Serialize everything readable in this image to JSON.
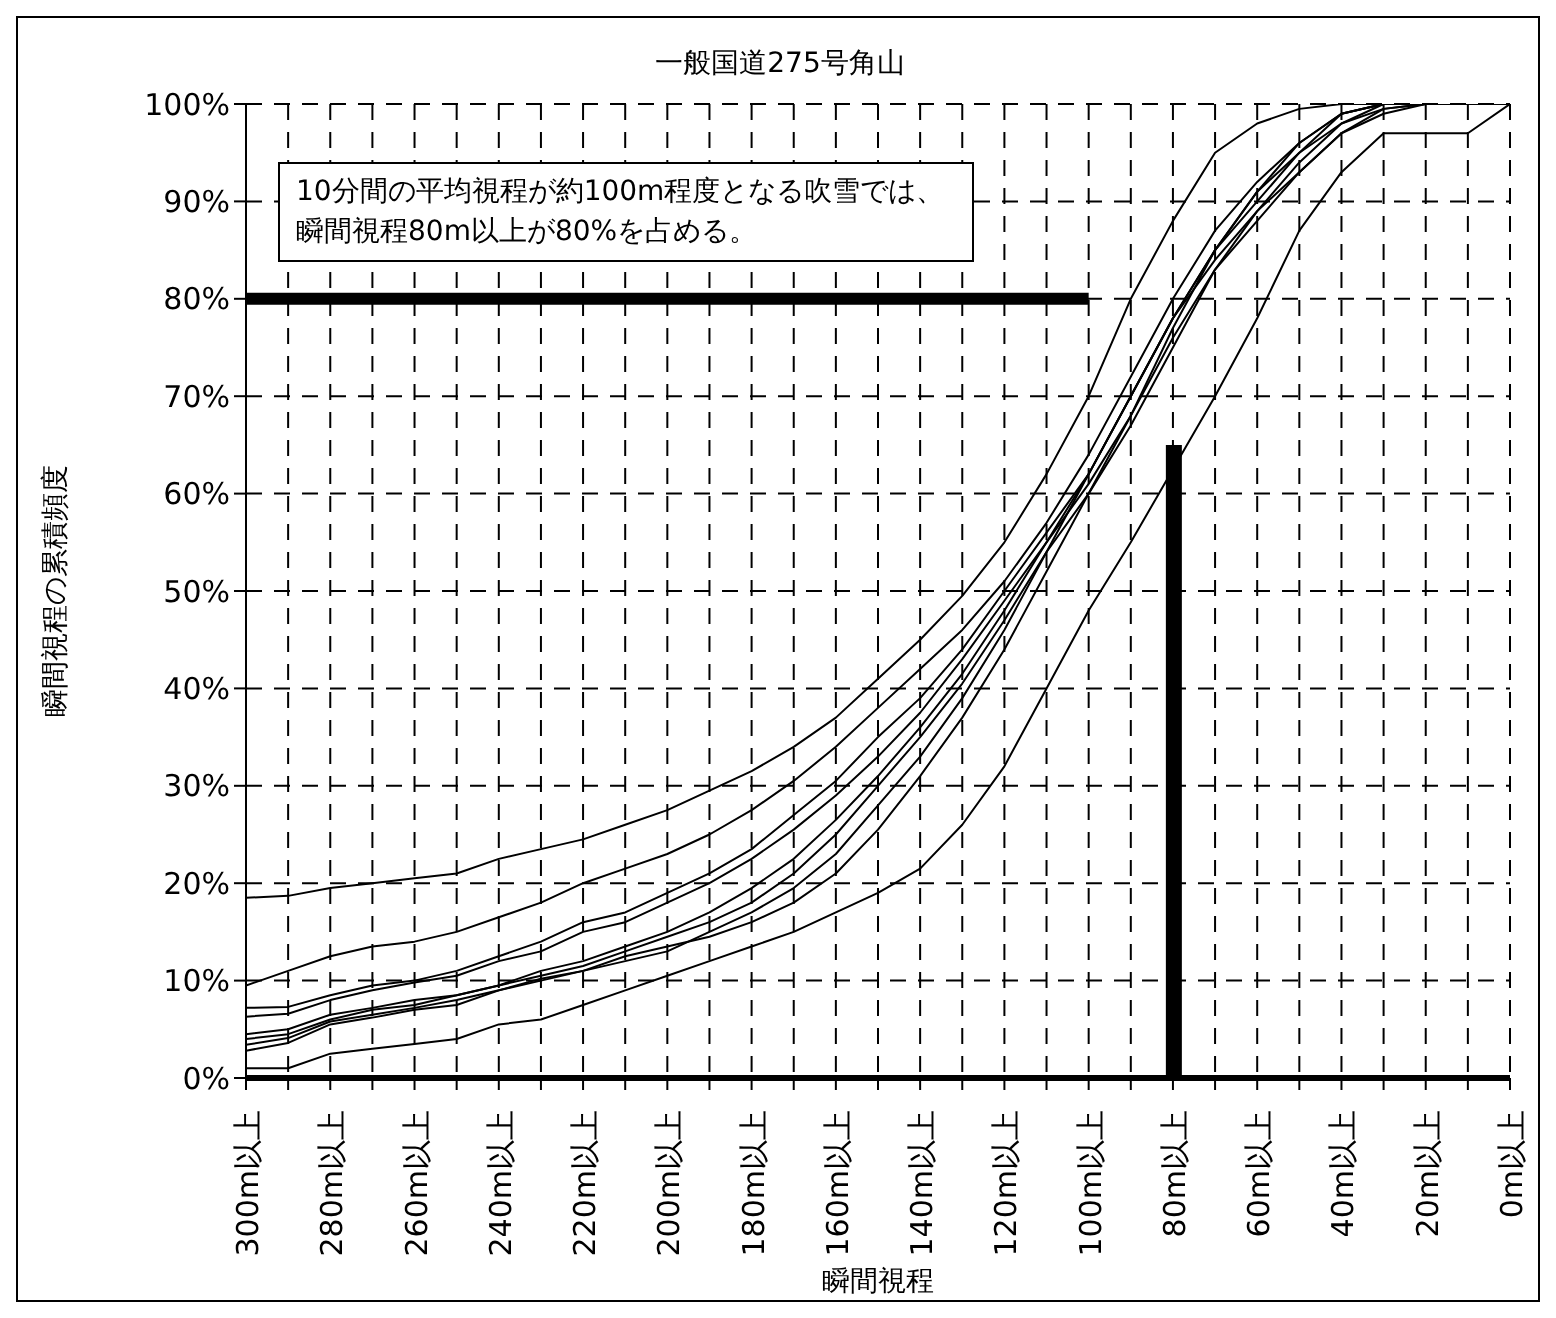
{
  "chart_data": {
    "type": "line",
    "title": "一般国道275号角山",
    "xlabel": "瞬間視程",
    "ylabel": "瞬間視程の累積頻度",
    "annotations": [
      "10分間の平均視程が約100m程度となる吹雪では、瞬間視程80m以上が80%を占める。"
    ],
    "categories": [
      "300m以上",
      null,
      "280m以上",
      null,
      "260m以上",
      null,
      "240m以上",
      null,
      "220m以上",
      null,
      "200m以上",
      null,
      "180m以上",
      null,
      "160m以上",
      null,
      "140m以上",
      null,
      "120m以上",
      null,
      "100m以上",
      null,
      "80m以上",
      null,
      "60m以上",
      null,
      "40m以上",
      null,
      "20m以上",
      null,
      "0m以上"
    ],
    "ylim": [
      0,
      100
    ],
    "yticks": [
      {
        "value": 0,
        "label": "0%"
      },
      {
        "value": 10,
        "label": "10%"
      },
      {
        "value": 20,
        "label": "20%"
      },
      {
        "value": 30,
        "label": "30%"
      },
      {
        "value": 40,
        "label": "40%"
      },
      {
        "value": 50,
        "label": "50%"
      },
      {
        "value": 60,
        "label": "60%"
      },
      {
        "value": 70,
        "label": "70%"
      },
      {
        "value": 80,
        "label": "80%"
      },
      {
        "value": 90,
        "label": "90%"
      },
      {
        "value": 100,
        "label": "100%"
      }
    ],
    "grid": true,
    "legend": false,
    "marker": "none",
    "line_style": "solid",
    "series": [
      {
        "color": "#000000",
        "values": [
          18.5,
          18.7,
          19.5,
          20,
          20.5,
          21,
          22.5,
          23.5,
          24.5,
          26,
          27.5,
          29.5,
          31.5,
          34,
          37,
          41,
          45,
          49.5,
          55,
          62,
          70,
          80,
          88,
          95,
          98,
          99.5,
          100,
          100,
          100,
          100,
          100
        ]
      },
      {
        "color": "#000000",
        "values": [
          9.5,
          11,
          12.5,
          13.5,
          14,
          15,
          16.5,
          18,
          20,
          21.5,
          23,
          25,
          27.5,
          30.5,
          34,
          38,
          42,
          46,
          51,
          57,
          64,
          72,
          80,
          87,
          92,
          96,
          99,
          100,
          100,
          100,
          100
        ]
      },
      {
        "color": "#000000",
        "values": [
          7.2,
          7.3,
          8.5,
          9.5,
          10,
          11,
          12.5,
          14,
          16,
          17,
          19,
          21,
          23.5,
          27,
          30.5,
          35,
          39,
          44,
          50,
          56,
          62,
          70,
          78,
          85,
          91,
          95,
          98,
          100,
          100,
          100,
          100
        ]
      },
      {
        "color": "#000000",
        "values": [
          6.3,
          6.6,
          8,
          9,
          9.8,
          10.5,
          12,
          13,
          15,
          16,
          18,
          20,
          22.5,
          25.5,
          29,
          33,
          37.5,
          43,
          49,
          55,
          61,
          68,
          77,
          85,
          90,
          95,
          99,
          100,
          100,
          100,
          100
        ]
      },
      {
        "color": "#000000",
        "values": [
          4.5,
          5,
          6.5,
          7.2,
          8,
          8.5,
          9.5,
          11,
          12,
          13.5,
          15,
          17,
          19.5,
          22.5,
          26.5,
          31,
          36,
          41.5,
          48,
          55,
          62,
          70,
          78,
          85,
          91,
          96,
          99,
          100,
          100,
          100,
          100
        ]
      },
      {
        "color": "#000000",
        "values": [
          4,
          4.5,
          6,
          7,
          7.5,
          8.5,
          9.5,
          10.5,
          11.5,
          13,
          14.5,
          16,
          18,
          21,
          25,
          30,
          35,
          40.5,
          47,
          54,
          60,
          67,
          75,
          83,
          89,
          94,
          98,
          99.5,
          100,
          100,
          100
        ]
      },
      {
        "color": "#000000",
        "values": [
          3.4,
          4.1,
          5.8,
          6.5,
          7.2,
          8,
          9,
          10,
          11,
          12,
          13,
          15,
          17,
          19.5,
          23,
          28,
          33,
          39,
          46,
          54,
          62,
          70,
          78,
          84,
          89,
          93,
          97,
          99,
          100,
          100,
          100
        ]
      },
      {
        "color": "#000000",
        "values": [
          2.8,
          3.6,
          5.5,
          6.2,
          7,
          7.5,
          9,
          10.2,
          11,
          12.5,
          13.5,
          14.5,
          16,
          18,
          21,
          25.5,
          31,
          37,
          44,
          52,
          60,
          68,
          76,
          83,
          88,
          93,
          97,
          99.5,
          100,
          100,
          100
        ]
      },
      {
        "color": "#000000",
        "values": [
          1,
          1,
          2.5,
          3,
          3.5,
          4,
          5.5,
          6,
          7.5,
          9,
          10.5,
          12,
          13.5,
          15,
          17,
          19,
          21.5,
          26,
          32,
          40,
          48,
          55,
          62.5,
          70,
          78,
          87,
          93,
          97,
          97,
          97,
          100
        ]
      },
      {
        "type": "line",
        "color": "#000000",
        "values": [
          80,
          80,
          80,
          80,
          80,
          80,
          80,
          80,
          80,
          80,
          80,
          80,
          80,
          80,
          80,
          80,
          80,
          80,
          80,
          80,
          80,
          null,
          null,
          null,
          null,
          null,
          null,
          null,
          null,
          null,
          null
        ]
      },
      {
        "type": "bar",
        "color": "#000000",
        "values": [
          null,
          null,
          null,
          null,
          null,
          null,
          null,
          null,
          null,
          null,
          null,
          null,
          null,
          null,
          null,
          null,
          null,
          null,
          null,
          null,
          null,
          null,
          65,
          null,
          null,
          null,
          null,
          null,
          null,
          null,
          null
        ]
      }
    ]
  }
}
